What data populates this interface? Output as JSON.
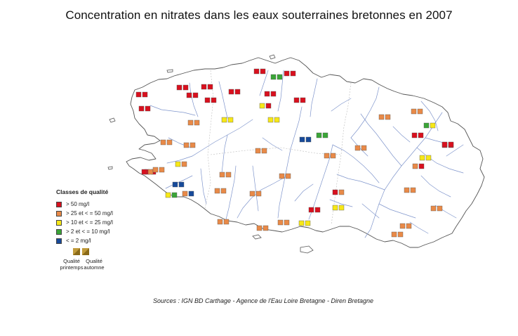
{
  "title": "Concentration en nitrates dans les eaux souterraines bretonnes en 2007",
  "colors": {
    "gt50": "#d9101e",
    "b25_50": "#e98a48",
    "b10_25": "#f7e817",
    "b2_10": "#3aa537",
    "le2": "#174a9a",
    "river": "#7f95cc",
    "coast": "#555555"
  },
  "legend": {
    "title": "Classes de qualité",
    "items": [
      {
        "label": "> 50 mg/l",
        "color": "#d9101e"
      },
      {
        "label": "> 25 et < = 50 mg/l",
        "color": "#e98a48"
      },
      {
        "label": "> 10 et < = 25 mg/l",
        "color": "#f7e817"
      },
      {
        "label": "> 2 et < = 10 mg/l",
        "color": "#3aa537"
      },
      {
        "label": "< = 2 mg/l",
        "color": "#174a9a"
      }
    ]
  },
  "season": {
    "spring_line1": "Qualité",
    "spring_line2": "printemps",
    "autumn_line1": "Qualité",
    "autumn_line2": "automne"
  },
  "sources": "Sources : IGN BD Carthage - Agence de l'Eau Loire Bretagne - Diren Bretagne",
  "stations": [
    {
      "c": [
        "gt50",
        "gt50"
      ]
    },
    {
      "c": [
        "gt50",
        "gt50"
      ]
    },
    {
      "c": [
        "gt50",
        "gt50"
      ]
    },
    {
      "c": [
        "gt50",
        "gt50"
      ]
    },
    {
      "c": [
        "gt50",
        "gt50"
      ]
    },
    {
      "c": [
        "gt50",
        "gt50"
      ]
    },
    {
      "c": [
        "gt50",
        "gt50"
      ]
    },
    {
      "c": [
        "gt50",
        "gt50"
      ]
    },
    {
      "c": [
        "b2_10",
        "b2_10"
      ]
    },
    {
      "c": [
        "gt50",
        "gt50"
      ]
    },
    {
      "c": [
        "gt50",
        "gt50"
      ]
    },
    {
      "c": [
        "b10_25",
        "gt50"
      ]
    },
    {
      "c": [
        "gt50",
        "gt50"
      ]
    },
    {
      "c": [
        "gt50",
        "gt50"
      ]
    },
    {
      "c": [
        "b10_25",
        "b10_25"
      ]
    },
    {
      "c": [
        "b25_50",
        "b25_50"
      ]
    },
    {
      "c": [
        "b10_25",
        "b10_25"
      ]
    },
    {
      "c": [
        "b25_50",
        "b25_50"
      ]
    },
    {
      "c": [
        "b25_50",
        "b25_50"
      ]
    },
    {
      "c": [
        "le2",
        "le2"
      ]
    },
    {
      "c": [
        "b2_10",
        "b2_10"
      ]
    },
    {
      "c": [
        "b25_50",
        "b25_50"
      ]
    },
    {
      "c": [
        "b25_50",
        "b25_50"
      ]
    },
    {
      "c": [
        "gt50",
        "gt50"
      ]
    },
    {
      "c": [
        "b2_10",
        "b10_25"
      ]
    },
    {
      "c": [
        "gt50",
        "gt50"
      ]
    },
    {
      "c": [
        "b25_50",
        "b25_50"
      ]
    },
    {
      "c": [
        "b25_50",
        "gt50"
      ]
    },
    {
      "c": [
        "b25_50",
        "b25_50"
      ]
    },
    {
      "c": [
        "b25_50",
        "b25_50"
      ]
    },
    {
      "c": [
        "b25_50",
        "b25_50"
      ]
    },
    {
      "c": [
        "b10_25",
        "b25_50"
      ]
    },
    {
      "c": [
        "gt50",
        "b25_50"
      ]
    },
    {
      "c": [
        "b10_25",
        "b10_25"
      ]
    },
    {
      "c": [
        "gt50",
        "b25_50"
      ]
    },
    {
      "c": [
        "b25_50",
        "b25_50"
      ]
    },
    {
      "c": [
        "b25_50",
        "b25_50"
      ]
    },
    {
      "c": [
        "le2",
        "le2"
      ]
    },
    {
      "c": [
        "b10_25",
        "b2_10"
      ]
    },
    {
      "c": [
        "b25_50",
        "le2"
      ]
    },
    {
      "c": [
        "b25_50",
        "b25_50"
      ]
    },
    {
      "c": [
        "b25_50",
        "b25_50"
      ]
    },
    {
      "c": [
        "gt50",
        "gt50"
      ]
    },
    {
      "c": [
        "b25_50",
        "b25_50"
      ]
    },
    {
      "c": [
        "b25_50",
        "b25_50"
      ]
    },
    {
      "c": [
        "gt50",
        "gt50"
      ]
    },
    {
      "c": [
        "b10_25",
        "b10_25"
      ]
    },
    {
      "c": [
        "b25_50",
        "b25_50"
      ]
    },
    {
      "c": [
        "b25_50",
        "b25_50"
      ]
    },
    {
      "c": [
        "b25_50",
        "b25_50"
      ]
    },
    {
      "c": [
        "b10_25",
        "b10_25"
      ]
    },
    {
      "c": [
        "b25_50",
        "b25_50"
      ]
    },
    {
      "c": [
        "b25_50",
        "b25_50"
      ]
    }
  ]
}
